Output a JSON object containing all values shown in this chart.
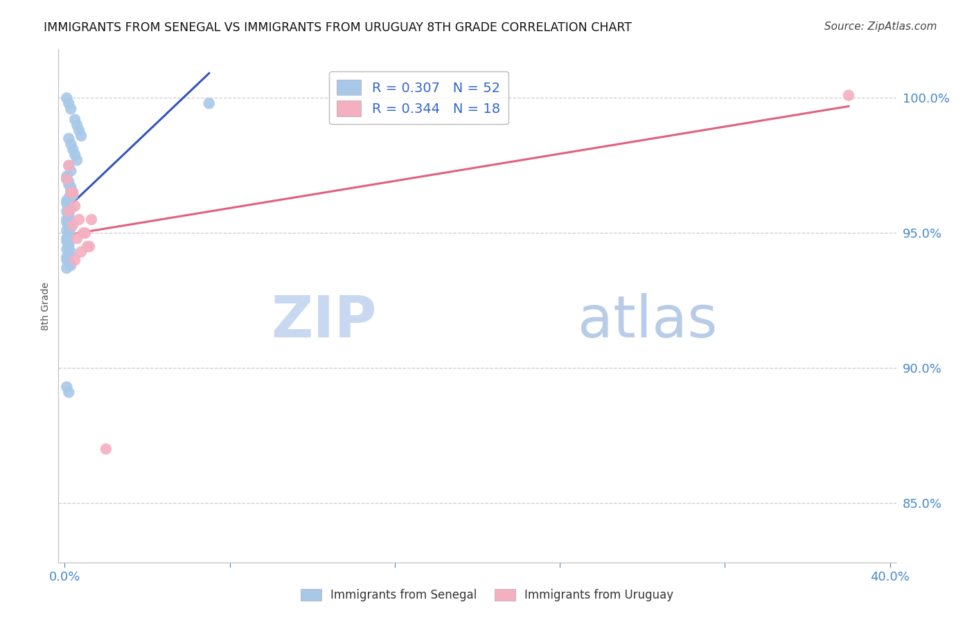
{
  "title": "IMMIGRANTS FROM SENEGAL VS IMMIGRANTS FROM URUGUAY 8TH GRADE CORRELATION CHART",
  "source": "Source: ZipAtlas.com",
  "ylabel": "8th Grade",
  "xlim": [
    -0.003,
    0.403
  ],
  "ylim": [
    0.828,
    1.018
  ],
  "xtick_positions": [
    0.0,
    0.08,
    0.16,
    0.24,
    0.32,
    0.4
  ],
  "xtick_labels": [
    "0.0%",
    "",
    "",
    "",
    "",
    "40.0%"
  ],
  "ytick_positions": [
    0.85,
    0.9,
    0.95,
    1.0
  ],
  "ytick_labels": [
    "85.0%",
    "90.0%",
    "95.0%",
    "100.0%"
  ],
  "grid_color": "#cccccc",
  "background_color": "#ffffff",
  "senegal_color": "#a8c8e8",
  "uruguay_color": "#f4afc0",
  "senegal_line_color": "#3355bb",
  "uruguay_line_color": "#e06080",
  "R_senegal": "0.307",
  "N_senegal": "52",
  "R_uruguay": "0.344",
  "N_uruguay": "18",
  "legend_label_color": "#3366cc",
  "tick_color": "#4488cc",
  "watermark_zip": "ZIP",
  "watermark_atlas": "atlas",
  "watermark_color_zip": "#c8d8f0",
  "watermark_color_atlas": "#b8cce8",
  "senegal_x": [
    0.001,
    0.002,
    0.003,
    0.005,
    0.006,
    0.007,
    0.008,
    0.002,
    0.003,
    0.004,
    0.005,
    0.006,
    0.002,
    0.003,
    0.001,
    0.002,
    0.003,
    0.004,
    0.002,
    0.001,
    0.003,
    0.002,
    0.001,
    0.002,
    0.003,
    0.004,
    0.001,
    0.002,
    0.001,
    0.002,
    0.001,
    0.003,
    0.002,
    0.001,
    0.002,
    0.001,
    0.002,
    0.001,
    0.003,
    0.001,
    0.002,
    0.001,
    0.002,
    0.001,
    0.002,
    0.003,
    0.001,
    0.002,
    0.001,
    0.07,
    0.001,
    0.002
  ],
  "senegal_y": [
    1.0,
    0.998,
    0.996,
    0.992,
    0.99,
    0.988,
    0.986,
    0.985,
    0.983,
    0.981,
    0.979,
    0.977,
    0.975,
    0.973,
    0.971,
    0.969,
    0.967,
    0.965,
    0.963,
    0.961,
    0.959,
    0.957,
    0.97,
    0.968,
    0.966,
    0.964,
    0.962,
    0.96,
    0.958,
    0.956,
    0.954,
    0.952,
    0.95,
    0.948,
    0.946,
    0.944,
    0.942,
    0.94,
    0.938,
    0.955,
    0.953,
    0.951,
    0.949,
    0.947,
    0.945,
    0.943,
    0.941,
    0.939,
    0.937,
    0.998,
    0.893,
    0.891
  ],
  "uruguay_x": [
    0.001,
    0.003,
    0.005,
    0.007,
    0.009,
    0.011,
    0.013,
    0.002,
    0.004,
    0.006,
    0.008,
    0.01,
    0.012,
    0.005,
    0.002,
    0.004,
    0.38,
    0.02
  ],
  "uruguay_y": [
    0.97,
    0.965,
    0.96,
    0.955,
    0.95,
    0.945,
    0.955,
    0.958,
    0.953,
    0.948,
    0.943,
    0.95,
    0.945,
    0.94,
    0.975,
    0.965,
    1.001,
    0.87
  ],
  "bottom_legend_senegal": "Immigrants from Senegal",
  "bottom_legend_uruguay": "Immigrants from Uruguay"
}
